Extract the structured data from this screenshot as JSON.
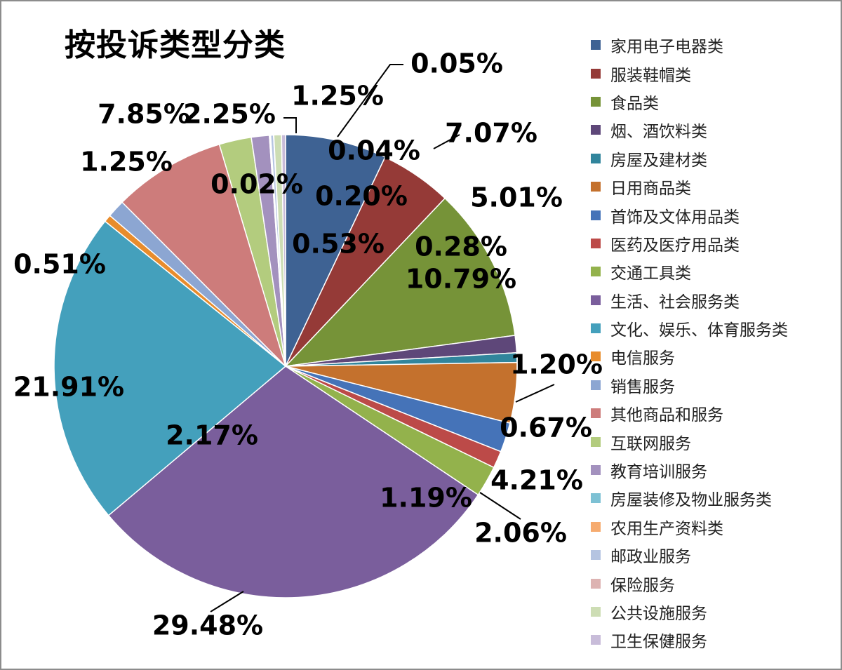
{
  "chart_data": {
    "type": "pie",
    "title": "按投诉类型分类",
    "categories": [
      "家用电子电器类",
      "服装鞋帽类",
      "食品类",
      "烟、酒饮料类",
      "房屋及建材类",
      "日用商品类",
      "首饰及文体用品类",
      "医药及医疗用品类",
      "交通工具类",
      "生活、社会服务类",
      "文化、娱乐、体育服务类",
      "电信服务",
      "销售服务",
      "其他商品和服务",
      "互联网服务",
      "教育培训服务",
      "房屋装修及物业服务类",
      "农用生产资料类",
      "邮政业服务",
      "保险服务",
      "公共设施服务",
      "卫生保健服务"
    ],
    "values": [
      7.07,
      5.01,
      10.79,
      1.2,
      0.67,
      4.21,
      2.06,
      1.19,
      2.17,
      29.48,
      21.91,
      0.51,
      1.25,
      7.85,
      2.25,
      1.25,
      0.05,
      0.04,
      0.2,
      0.02,
      0.53,
      0.28
    ],
    "labels": [
      "7.07%",
      "5.01%",
      "10.79%",
      "1.20%",
      "0.67%",
      "4.21%",
      "2.06%",
      "1.19%",
      "2.17%",
      "29.48%",
      "21.91%",
      "0.51%",
      "1.25%",
      "7.85%",
      "2.25%",
      "1.25%",
      "0.05%",
      "0.04%",
      "0.20%",
      "0.02%",
      "0.53%",
      "0.28%"
    ],
    "colors": [
      "#3e6293",
      "#953a37",
      "#769338",
      "#5e4779",
      "#31859c",
      "#c4712d",
      "#4573b8",
      "#bc4a48",
      "#93b24c",
      "#7a5e9c",
      "#44a0bc",
      "#e88c2c",
      "#8ca6d2",
      "#cd7c7b",
      "#b3cc7e",
      "#a391be",
      "#7dc1d4",
      "#f6ab6f",
      "#b5c4e1",
      "#ddb3b2",
      "#cdddb4",
      "#c8bcd9"
    ],
    "legend_position": "right"
  }
}
